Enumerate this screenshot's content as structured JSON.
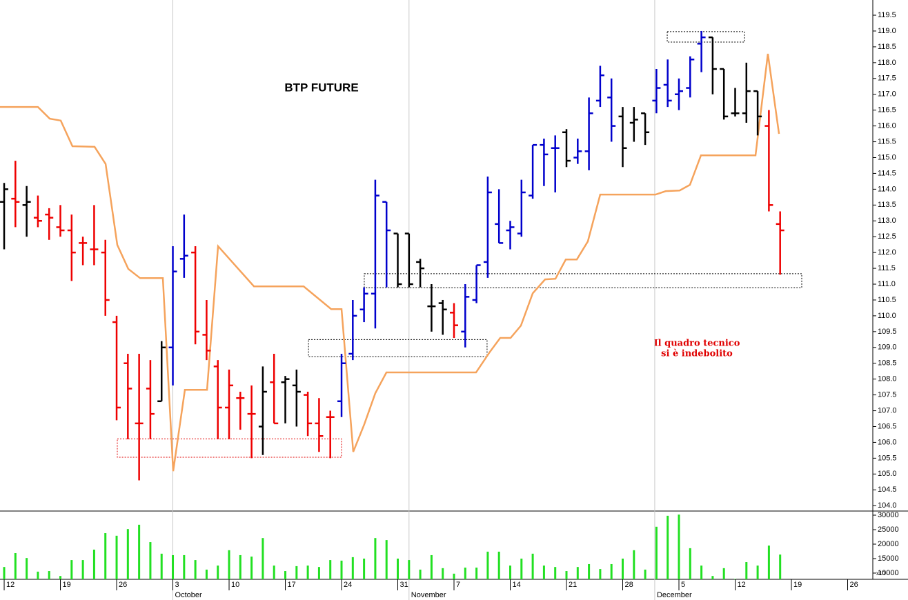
{
  "chart_data": {
    "type": "ohlc",
    "title": "BTP FUTURE",
    "annotation": [
      "Il quadro tecnico",
      "si è indebolito"
    ],
    "annotation_color": "#e00000",
    "xlim": [
      -0.37,
      77.24
    ],
    "xticks": [
      {
        "value": 0,
        "label": "12"
      },
      {
        "value": 5,
        "label": "19"
      },
      {
        "value": 10,
        "label": "26"
      },
      {
        "value": 15,
        "label": "3"
      },
      {
        "value": 20,
        "label": "10"
      },
      {
        "value": 25,
        "label": "17"
      },
      {
        "value": 30,
        "label": "24"
      },
      {
        "value": 35,
        "label": "31"
      },
      {
        "value": 40,
        "label": "7"
      },
      {
        "value": 45,
        "label": "14"
      },
      {
        "value": 50,
        "label": "21"
      },
      {
        "value": 55,
        "label": "28"
      },
      {
        "value": 60,
        "label": "5"
      },
      {
        "value": 65,
        "label": "12"
      },
      {
        "value": 70,
        "label": "19"
      },
      {
        "value": 75,
        "label": "26"
      }
    ],
    "months": [
      {
        "value": 15,
        "label": "October"
      },
      {
        "value": 36,
        "label": "November"
      },
      {
        "value": 57.85,
        "label": "December"
      }
    ],
    "ylim": [
      103.83,
      119.98
    ],
    "yticks": [
      {
        "value": 104,
        "label": "104.0"
      },
      {
        "value": 104.5,
        "label": "104.5"
      },
      {
        "value": 105,
        "label": "105.0"
      },
      {
        "value": 105.5,
        "label": "105.5"
      },
      {
        "value": 106,
        "label": "106.0"
      },
      {
        "value": 106.5,
        "label": "106.5"
      },
      {
        "value": 107,
        "label": "107.0"
      },
      {
        "value": 107.5,
        "label": "107.5"
      },
      {
        "value": 108,
        "label": "108.0"
      },
      {
        "value": 108.5,
        "label": "108.5"
      },
      {
        "value": 109,
        "label": "109.0"
      },
      {
        "value": 109.5,
        "label": "109.5"
      },
      {
        "value": 110,
        "label": "110.0"
      },
      {
        "value": 110.5,
        "label": "110.5"
      },
      {
        "value": 111,
        "label": "111.0"
      },
      {
        "value": 111.5,
        "label": "111.5"
      },
      {
        "value": 112,
        "label": "112.0"
      },
      {
        "value": 112.5,
        "label": "112.5"
      },
      {
        "value": 113,
        "label": "113.0"
      },
      {
        "value": 113.5,
        "label": "113.5"
      },
      {
        "value": 114,
        "label": "114.0"
      },
      {
        "value": 114.5,
        "label": "114.5"
      },
      {
        "value": 115,
        "label": "115.0"
      },
      {
        "value": 115.5,
        "label": "115.5"
      },
      {
        "value": 116,
        "label": "116.0"
      },
      {
        "value": 116.5,
        "label": "116.5"
      },
      {
        "value": 117,
        "label": "117.0"
      },
      {
        "value": 117.5,
        "label": "117.5"
      },
      {
        "value": 118,
        "label": "118.0"
      },
      {
        "value": 118.5,
        "label": "118.5"
      },
      {
        "value": 119,
        "label": "119.0"
      },
      {
        "value": 119.5,
        "label": "119.5"
      }
    ],
    "bars": {
      "x": [
        0,
        1,
        2,
        3,
        4,
        5,
        6,
        7,
        8,
        9,
        10,
        11,
        12,
        13,
        14,
        15,
        16,
        17,
        18,
        19,
        20,
        21,
        22,
        23,
        24,
        25,
        26,
        27,
        28,
        29,
        30,
        31,
        32,
        33,
        34,
        35,
        36,
        37,
        38,
        39,
        40,
        41,
        42,
        43,
        44,
        45,
        46,
        47,
        48,
        49,
        50,
        51,
        52,
        53,
        54,
        55,
        56,
        57,
        58,
        59,
        60,
        61,
        62,
        63,
        64,
        65,
        66,
        67,
        68,
        69
      ],
      "open": [
        113.6,
        113.7,
        113.5,
        113.1,
        113.2,
        112.8,
        112.7,
        112.3,
        112.1,
        112.0,
        109.8,
        108.5,
        106.6,
        107.7,
        107.3,
        109.0,
        111.8,
        112.0,
        109.4,
        108.4,
        107.1,
        107.4,
        106.9,
        106.5,
        107.9,
        107.9,
        107.8,
        107.5,
        106.6,
        106.8,
        107.3,
        108.8,
        110.2,
        110.7,
        113.6,
        112.6,
        112.6,
        111.7,
        110.3,
        110.4,
        110.1,
        109.5,
        110.5,
        111.7,
        112.9,
        112.7,
        112.6,
        113.8,
        115.4,
        115.3,
        115.8,
        115.0,
        115.2,
        116.8,
        116.9,
        116.3,
        116.1,
        116.4,
        116.8,
        117.3,
        117.0,
        117.2,
        118.6,
        118.8,
        117.8,
        116.4,
        116.4,
        117.1,
        116.0,
        112.9
      ],
      "high": [
        114.2,
        114.9,
        114.1,
        113.8,
        113.4,
        113.5,
        113.2,
        112.5,
        113.5,
        112.4,
        110.0,
        108.8,
        108.8,
        108.6,
        109.2,
        112.2,
        113.2,
        112.2,
        110.5,
        108.6,
        108.3,
        107.6,
        107.8,
        108.4,
        108.8,
        108.1,
        108.3,
        107.6,
        107.4,
        107.0,
        108.8,
        110.5,
        110.9,
        114.3,
        113.6,
        112.6,
        112.6,
        111.8,
        111.0,
        110.5,
        110.4,
        111.0,
        111.6,
        114.4,
        114.0,
        113.0,
        114.3,
        115.4,
        115.6,
        115.7,
        115.9,
        115.6,
        116.9,
        117.9,
        117.5,
        116.6,
        116.6,
        116.4,
        117.8,
        118.1,
        117.5,
        118.2,
        119.0,
        118.8,
        117.8,
        117.2,
        118.0,
        117.1,
        116.5,
        113.3
      ],
      "low": [
        112.1,
        112.8,
        112.5,
        112.8,
        112.4,
        112.5,
        111.1,
        111.6,
        111.6,
        110.0,
        106.7,
        106.1,
        104.8,
        106.1,
        107.3,
        107.8,
        111.2,
        109.1,
        108.6,
        106.1,
        106.1,
        106.4,
        105.5,
        105.6,
        106.6,
        106.6,
        106.5,
        106.2,
        105.7,
        105.5,
        106.8,
        108.6,
        109.8,
        109.6,
        110.9,
        110.9,
        110.9,
        110.9,
        109.5,
        109.4,
        109.3,
        109.0,
        110.4,
        111.2,
        112.3,
        112.1,
        112.5,
        113.7,
        114.1,
        113.9,
        114.7,
        114.8,
        114.6,
        116.6,
        115.5,
        114.7,
        115.5,
        115.4,
        116.4,
        116.6,
        116.5,
        116.9,
        117.7,
        117.0,
        116.2,
        116.3,
        116.1,
        115.7,
        113.3,
        111.3
      ],
      "close": [
        114.0,
        113.6,
        113.6,
        113.0,
        113.1,
        112.7,
        112.0,
        112.3,
        112.1,
        110.5,
        107.1,
        107.7,
        106.6,
        106.9,
        109.0,
        111.4,
        111.9,
        109.5,
        108.9,
        107.1,
        107.8,
        107.4,
        106.9,
        107.6,
        106.6,
        108.0,
        107.6,
        106.6,
        106.2,
        106.8,
        108.5,
        110.0,
        110.7,
        113.8,
        112.7,
        111.0,
        111.0,
        111.5,
        110.3,
        110.2,
        109.7,
        110.6,
        111.6,
        113.9,
        112.3,
        112.8,
        113.9,
        115.4,
        115.1,
        115.3,
        114.9,
        115.2,
        116.4,
        117.6,
        116.0,
        115.3,
        116.2,
        115.8,
        117.2,
        116.8,
        117.1,
        118.1,
        118.8,
        117.8,
        116.3,
        116.4,
        117.1,
        116.3,
        113.5,
        112.7
      ],
      "colors": [
        "#000",
        "#e00",
        "#000",
        "#e00",
        "#e00",
        "#e00",
        "#e00",
        "#e00",
        "#e00",
        "#e00",
        "#e00",
        "#e00",
        "#e00",
        "#e00",
        "#000",
        "#00c",
        "#00c",
        "#e00",
        "#e00",
        "#e00",
        "#e00",
        "#e00",
        "#e00",
        "#000",
        "#e00",
        "#000",
        "#000",
        "#e00",
        "#e00",
        "#e00",
        "#00c",
        "#00c",
        "#00c",
        "#00c",
        "#00c",
        "#000",
        "#000",
        "#000",
        "#000",
        "#000",
        "#e00",
        "#00c",
        "#00c",
        "#00c",
        "#00c",
        "#00c",
        "#00c",
        "#00c",
        "#00c",
        "#00c",
        "#000",
        "#00c",
        "#00c",
        "#00c",
        "#00c",
        "#000",
        "#000",
        "#000",
        "#00c",
        "#00c",
        "#00c",
        "#00c",
        "#00c",
        "#000",
        "#000",
        "#000",
        "#000",
        "#000",
        "#e00",
        "#e00"
      ]
    },
    "line": {
      "color": "#f5a35c",
      "x": [
        -0.37,
        3.0,
        4.05,
        5.03,
        6.07,
        8.04,
        9.02,
        10.06,
        11.04,
        12.09,
        14.11,
        15.03,
        16.07,
        18.04,
        19.02,
        22.21,
        26.63,
        29.08,
        30.0,
        31.04,
        32.02,
        33.0,
        33.99,
        41.96,
        43.19,
        44.11,
        45.03,
        45.95,
        47.0,
        48.1,
        49.02,
        49.94,
        50.92,
        51.9,
        53.0,
        57.91,
        58.83,
        60.06,
        60.98,
        61.96,
        66.81,
        67.91,
        68.9
      ],
      "values": [
        116.6,
        116.6,
        116.23,
        116.17,
        115.36,
        115.34,
        114.8,
        112.24,
        111.48,
        111.19,
        111.19,
        105.09,
        107.66,
        107.66,
        112.2,
        110.93,
        110.93,
        110.21,
        110.21,
        105.7,
        106.57,
        107.55,
        108.21,
        108.21,
        108.86,
        109.3,
        109.3,
        109.69,
        110.71,
        111.15,
        111.17,
        111.78,
        111.78,
        112.35,
        113.83,
        113.83,
        113.94,
        113.96,
        114.14,
        115.07,
        115.07,
        118.28,
        115.75
      ]
    },
    "zones": [
      {
        "x": [
          10.06,
          30.0
        ],
        "y": [
          105.53,
          106.11
        ],
        "color": "#e00000"
      },
      {
        "x": [
          27.06,
          42.94
        ],
        "y": [
          108.71,
          109.25
        ],
        "color": "#000000"
      },
      {
        "x": [
          32.02,
          70.92
        ],
        "y": [
          110.89,
          111.33
        ],
        "color": "#000000"
      },
      {
        "x": [
          58.96,
          65.83
        ],
        "y": [
          118.65,
          118.98
        ],
        "color": "#000000"
      }
    ],
    "volume": {
      "type": "bar",
      "color": "#22e022",
      "multiplier": "x10",
      "ylim": [
        7850,
        31430
      ],
      "yticks": [
        10000,
        15000,
        20000,
        25000,
        30000
      ],
      "values": [
        12100,
        16900,
        15200,
        10500,
        10700,
        9000,
        14500,
        14500,
        18100,
        23800,
        22900,
        25200,
        26700,
        20700,
        16700,
        16200,
        16200,
        14500,
        11200,
        12600,
        17900,
        16200,
        15700,
        22100,
        12600,
        10700,
        12400,
        12600,
        12100,
        14500,
        14300,
        15500,
        15000,
        22100,
        21400,
        15000,
        14500,
        11200,
        16200,
        11700,
        9800,
        11900,
        11900,
        17400,
        17400,
        12600,
        15000,
        16700,
        12600,
        12100,
        10700,
        12100,
        13100,
        11400,
        13100,
        15000,
        17900,
        11200,
        26000,
        29800,
        30200,
        18600,
        12600,
        9000,
        11700,
        8000,
        13800,
        12600,
        19500,
        16400
      ]
    }
  }
}
